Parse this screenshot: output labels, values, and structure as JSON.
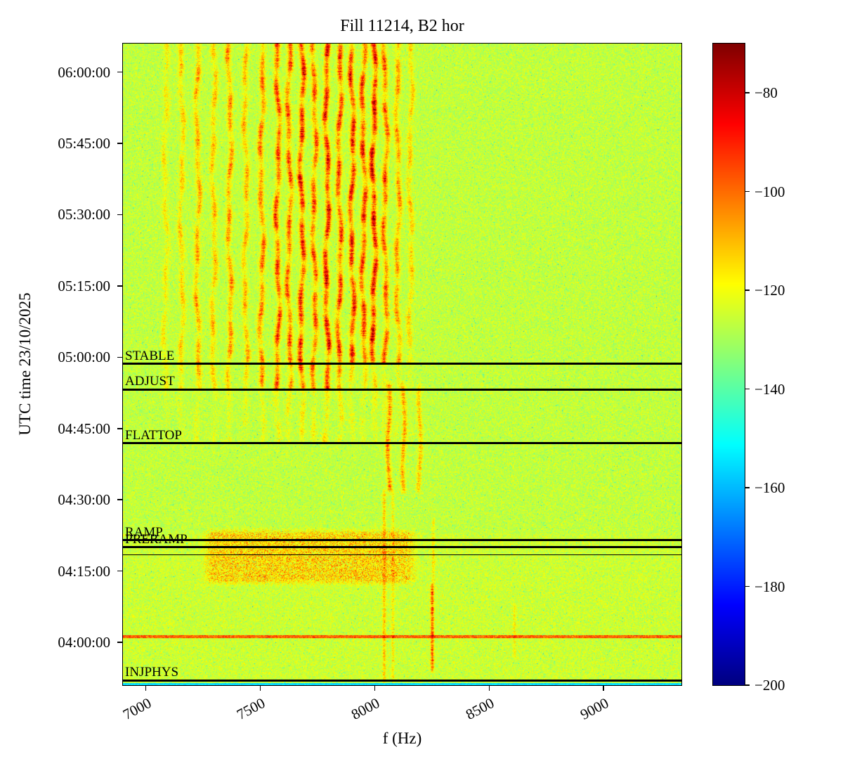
{
  "chart_data": {
    "type": "heatmap",
    "title": "Fill 11214, B2 hor",
    "xlabel": "f (Hz)",
    "ylabel": "UTC time 23/10/2025",
    "colormap": "jet",
    "freq_range": [
      6900,
      9340
    ],
    "time_range": [
      "03:51:00",
      "06:06:00"
    ],
    "x_ticks": [
      7000,
      7500,
      8000,
      8500,
      9000
    ],
    "y_ticks": [
      "06:00:00",
      "05:45:00",
      "05:30:00",
      "05:15:00",
      "05:00:00",
      "04:45:00",
      "04:30:00",
      "04:15:00",
      "04:00:00"
    ],
    "colorbar": {
      "vmin": -200,
      "vmax": -70,
      "ticks": [
        -80,
        -100,
        -120,
        -140,
        -160,
        -180,
        -200
      ]
    },
    "annotations": [
      {
        "label": "STABLE",
        "time": "04:58:36"
      },
      {
        "label": "ADJUST",
        "time": "04:53:12"
      },
      {
        "label": "FLATTOP",
        "time": "04:41:54"
      },
      {
        "label": "RAMP",
        "time": "04:21:30"
      },
      {
        "label": "PRERAMP",
        "time": "04:20:00"
      },
      {
        "label": "INJPHYS",
        "time": "03:52:00"
      }
    ],
    "extra_lines": [
      "04:18:24"
    ],
    "features": {
      "background_db": -126.5,
      "noise_sigma_db": 4.2,
      "upper_stripes": {
        "time_start": "04:41:54",
        "sigma_hz": 8,
        "freqs": [
          7085,
          7155,
          7225,
          7295,
          7365,
          7435,
          7505,
          7575,
          7625,
          7680,
          7735,
          7790,
          7845,
          7900,
          7950,
          7995,
          8045,
          8100,
          8155
        ],
        "amps": [
          10,
          14,
          20,
          16,
          22,
          18,
          26,
          34,
          30,
          40,
          30,
          42,
          34,
          40,
          36,
          44,
          30,
          22,
          14
        ]
      },
      "mid_stripes": {
        "time_range": [
          "04:33:00",
          "04:53:12"
        ],
        "sigma_hz": 7,
        "freqs": [
          8060,
          8125,
          8195
        ],
        "amps": [
          24,
          19,
          15
        ]
      },
      "lower_lines": [
        {
          "f": 8040,
          "amp": 15,
          "sigma": 5,
          "t0": "03:51:00",
          "t1": "04:32:00"
        },
        {
          "f": 8078,
          "amp": 10,
          "sigma": 4,
          "t0": "03:51:00",
          "t1": "04:32:00"
        },
        {
          "f": 8250,
          "amp": 30,
          "sigma": 5,
          "t0": "03:54:00",
          "t1": "04:12:00"
        },
        {
          "f": 8255,
          "amp": 10,
          "sigma": 5,
          "t0": "04:12:00",
          "t1": "04:26:00"
        },
        {
          "f": 8610,
          "amp": 9,
          "sigma": 5,
          "t0": "03:57:00",
          "t1": "04:08:00"
        }
      ],
      "blob": {
        "t_range": [
          "04:12:30",
          "04:23:30"
        ],
        "f_range": [
          7300,
          8130
        ],
        "amp": 13
      },
      "red_hline": {
        "time": "04:01:12",
        "amp": 22
      },
      "bottom_band_db": -152
    }
  }
}
